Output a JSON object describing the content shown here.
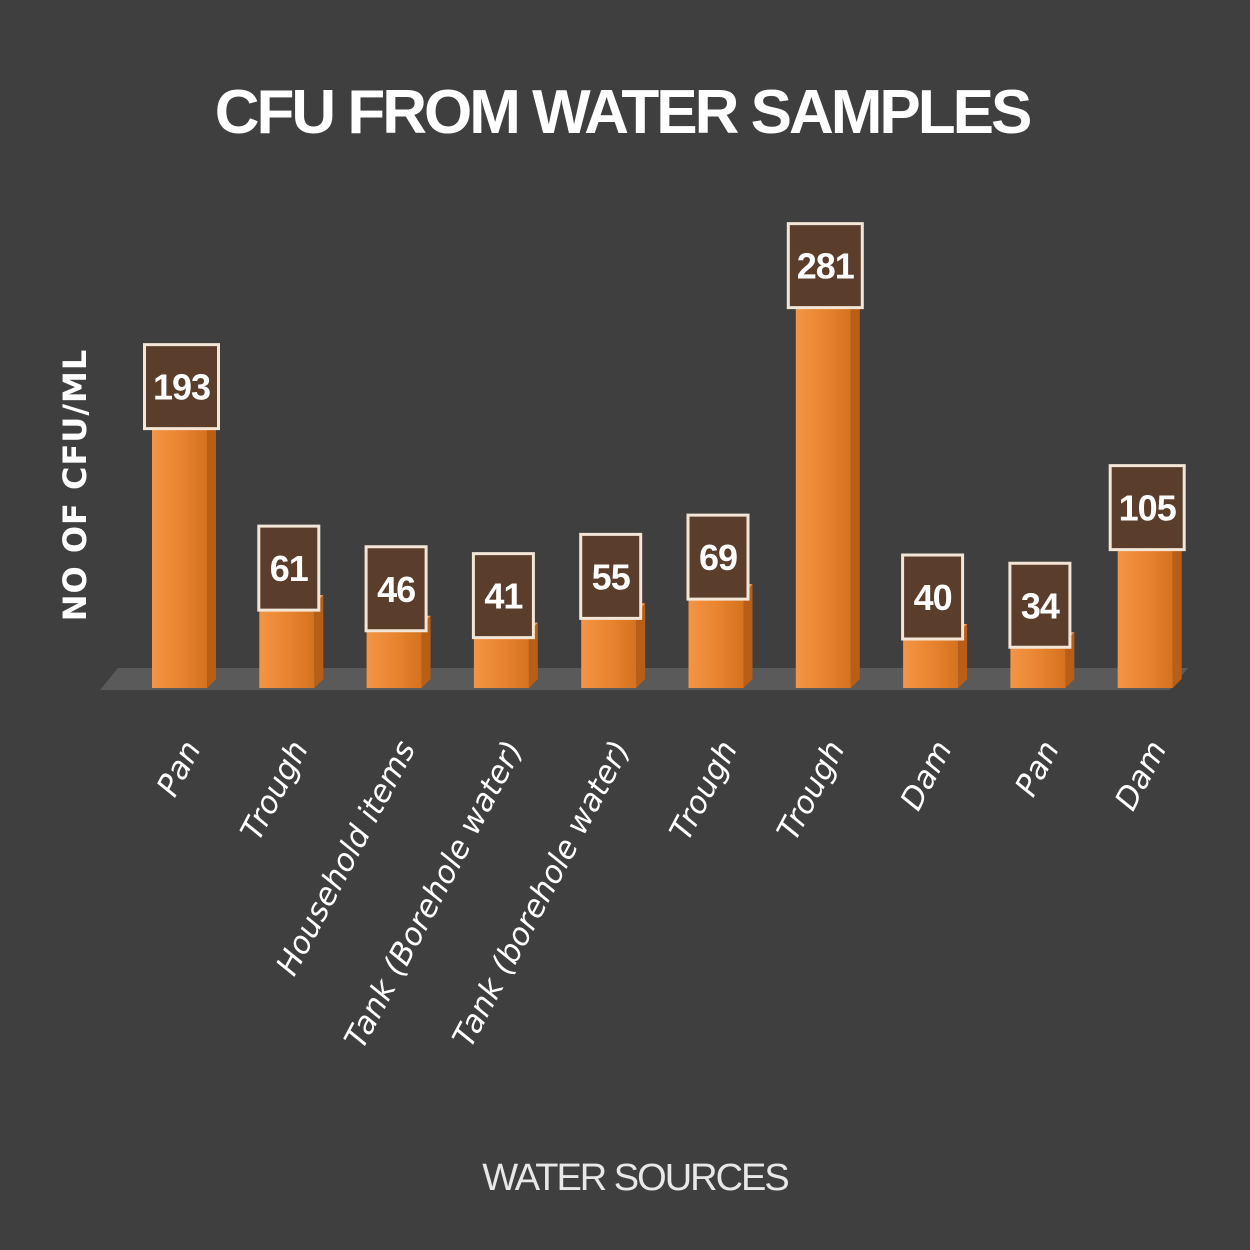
{
  "chart_data": {
    "type": "bar",
    "title": "CFU FROM WATER SAMPLES",
    "xlabel": "WATER SOURCES",
    "ylabel": "NO OF CFU/ML",
    "categories": [
      "Pan",
      "Trough",
      "Household items",
      "Tank (Borehole water)",
      "Tank (borehole water)",
      "Trough",
      "Trough",
      "Dam",
      "Pan",
      "Dam"
    ],
    "values": [
      193,
      61,
      46,
      41,
      55,
      69,
      281,
      40,
      34,
      105
    ],
    "ylim": [
      0,
      300
    ],
    "grid": false,
    "legend": "none",
    "data_labels": true
  },
  "colors": {
    "background": "#3f3f3f",
    "bar": "#e8832e",
    "bar_side": "#b85e16",
    "label_box": "#5b3d2c",
    "label_border": "#f4e6d6",
    "floor": "#5a5a5a"
  }
}
